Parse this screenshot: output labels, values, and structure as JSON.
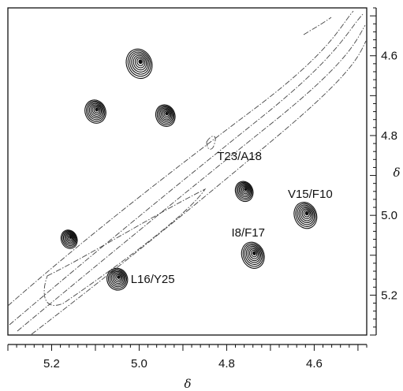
{
  "chart_data": {
    "type": "scatter",
    "xlabel": "δ",
    "ylabel": "δ",
    "x_reversed": true,
    "y_axis_side": "right",
    "xlim": [
      5.3,
      4.48
    ],
    "ylim": [
      4.48,
      5.3
    ],
    "x_ticks": [
      {
        "value": 5.2,
        "label": "5.2"
      },
      {
        "value": 5.0,
        "label": "5.0"
      },
      {
        "value": 4.8,
        "label": "4.8"
      },
      {
        "value": 4.6,
        "label": "4.6"
      }
    ],
    "y_ticks": [
      {
        "value": 4.6,
        "label": "4.6"
      },
      {
        "value": 4.8,
        "label": "4.8"
      },
      {
        "value": 5.0,
        "label": "5.0"
      },
      {
        "value": 5.2,
        "label": "5.2"
      }
    ],
    "peaks": [
      {
        "x": 5.0,
        "y": 4.62,
        "label": ""
      },
      {
        "x": 5.1,
        "y": 4.74,
        "label": ""
      },
      {
        "x": 4.94,
        "y": 4.75,
        "label": ""
      },
      {
        "x": 4.76,
        "y": 4.94,
        "label": "T23/A18"
      },
      {
        "x": 4.62,
        "y": 5.0,
        "label": "V15/F10"
      },
      {
        "x": 4.74,
        "y": 5.1,
        "label": "I8/F17"
      },
      {
        "x": 5.16,
        "y": 5.06,
        "label": ""
      },
      {
        "x": 5.05,
        "y": 5.16,
        "label": "L16/Y25"
      }
    ]
  }
}
